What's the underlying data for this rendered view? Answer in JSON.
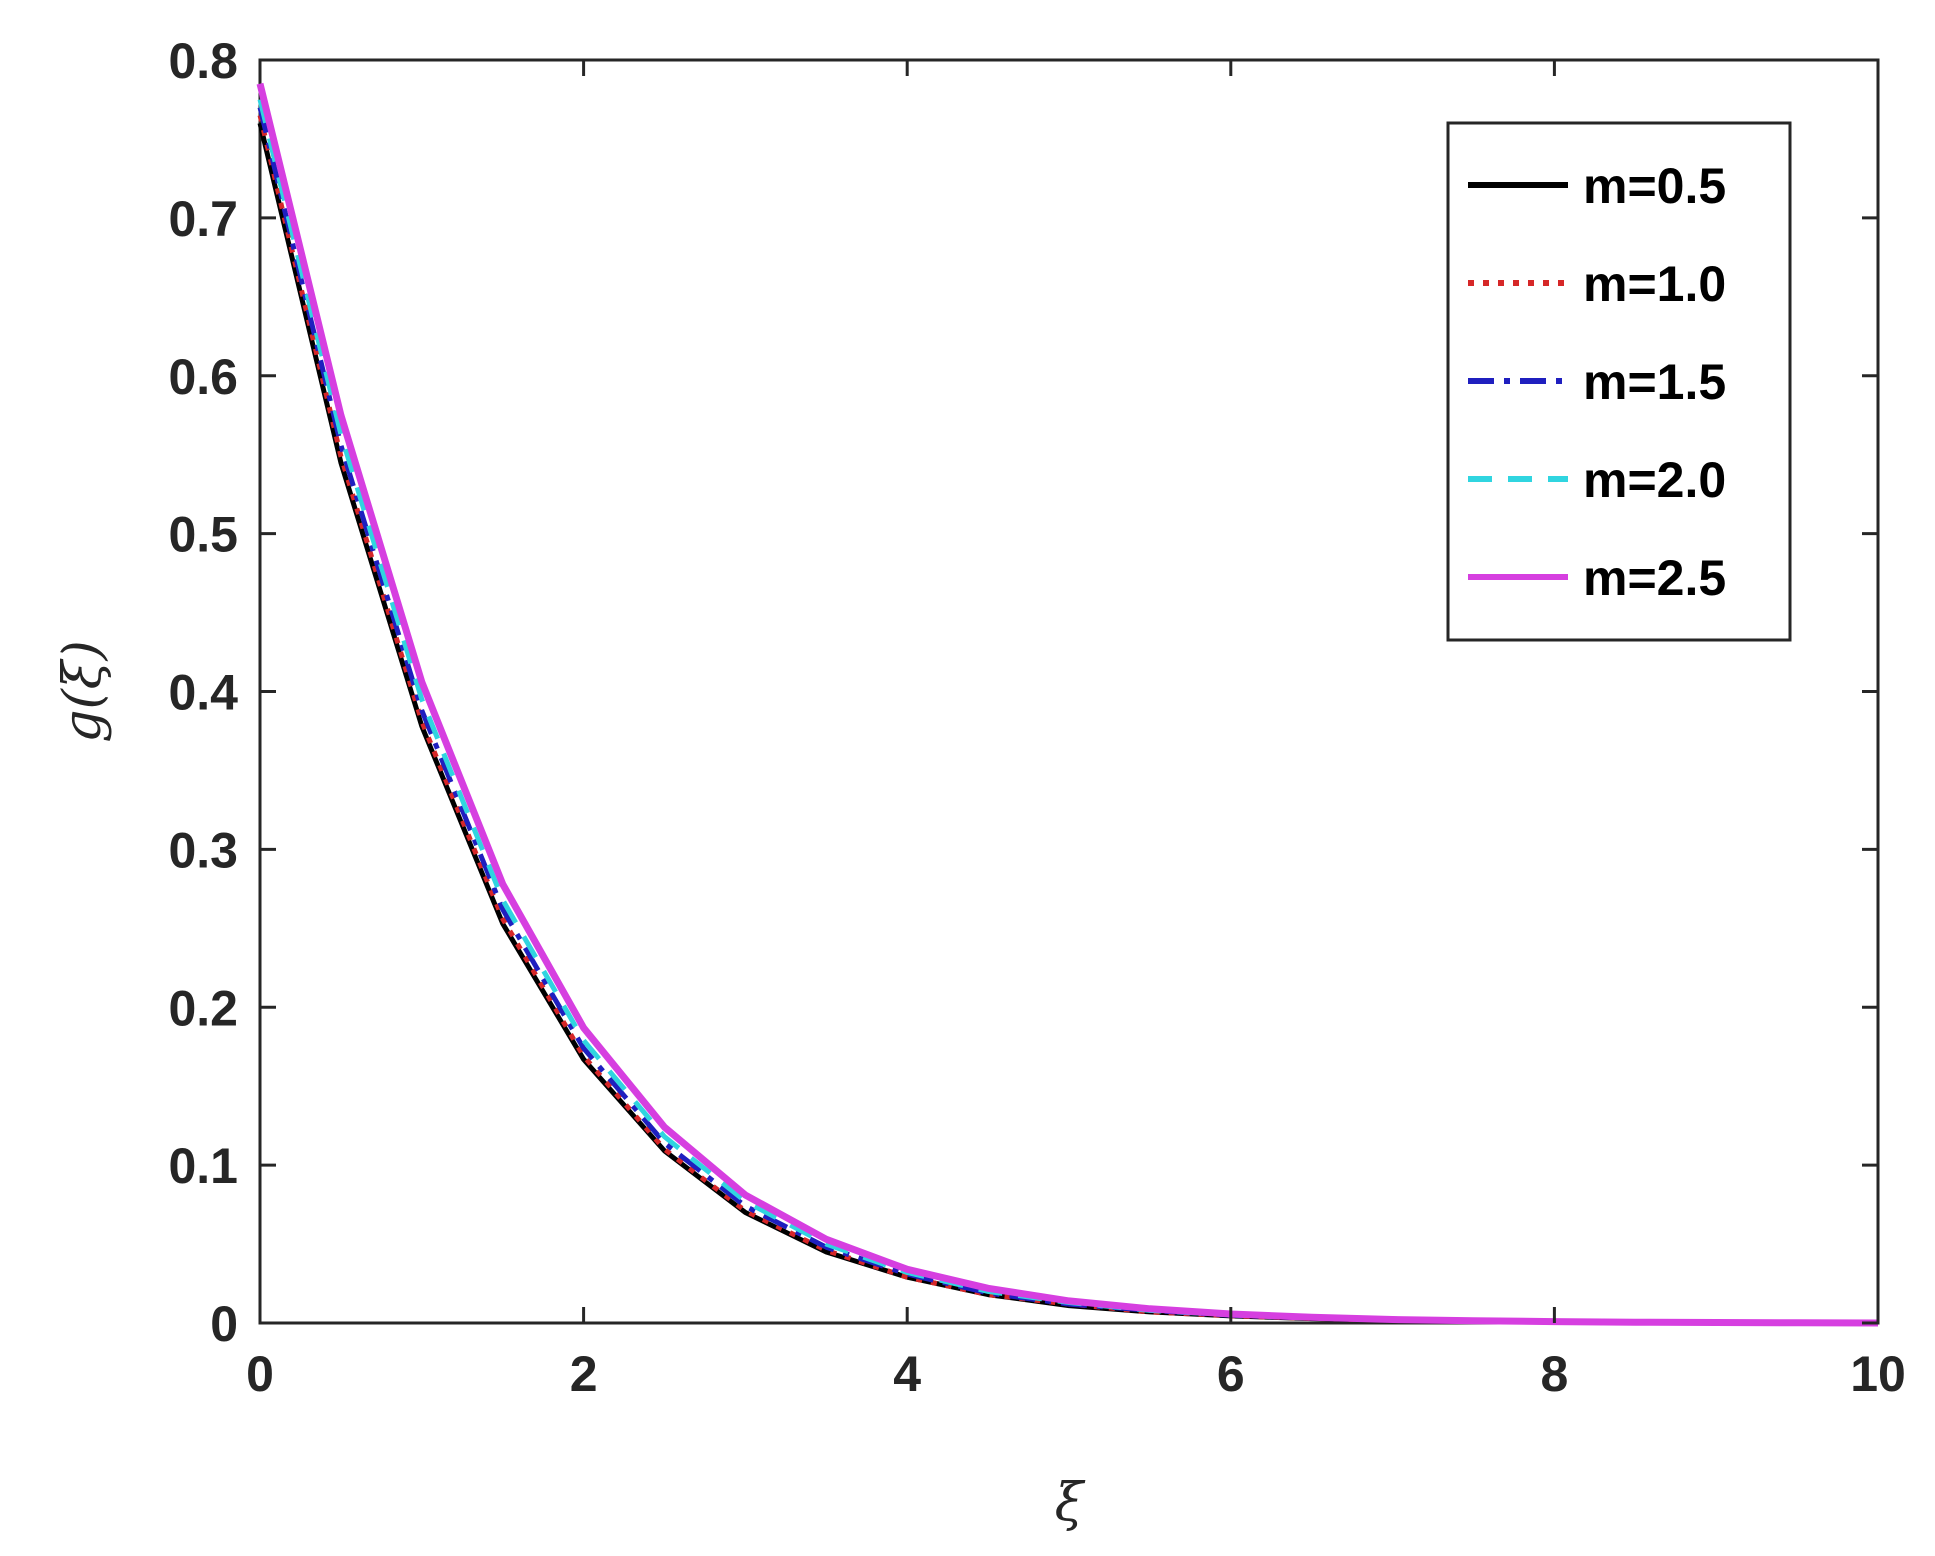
{
  "chart_data": {
    "type": "line",
    "xlabel": "ξ",
    "ylabel": "g(ξ)",
    "xlim": [
      0,
      10
    ],
    "ylim": [
      0,
      0.8
    ],
    "x_ticks": [
      "0",
      "2",
      "4",
      "6",
      "8",
      "10"
    ],
    "y_ticks": [
      "0",
      "0.1",
      "0.2",
      "0.3",
      "0.4",
      "0.5",
      "0.6",
      "0.7",
      "0.8"
    ],
    "grid": false,
    "legend_position": "top-right",
    "x": [
      0,
      0.5,
      1,
      1.5,
      2,
      2.5,
      3,
      3.5,
      4,
      4.5,
      5,
      5.5,
      6,
      6.5,
      7,
      7.5,
      8,
      8.5,
      9,
      9.5,
      10
    ],
    "series": [
      {
        "name": "m=0.5",
        "color": "#000000",
        "style": "solid",
        "values": [
          0.76,
          0.545,
          0.378,
          0.253,
          0.167,
          0.109,
          0.07,
          0.045,
          0.029,
          0.018,
          0.011,
          0.007,
          0.0045,
          0.0028,
          0.0017,
          0.0011,
          0.0007,
          0.0004,
          0.0002,
          0.0001,
          0.0
        ]
      },
      {
        "name": "m=1.0",
        "color": "#d62728",
        "style": "dotted",
        "values": [
          0.765,
          0.549,
          0.381,
          0.256,
          0.169,
          0.11,
          0.071,
          0.046,
          0.029,
          0.018,
          0.012,
          0.007,
          0.0046,
          0.0029,
          0.0018,
          0.0011,
          0.0007,
          0.0004,
          0.0002,
          0.0001,
          0.0
        ]
      },
      {
        "name": "m=1.5",
        "color": "#1f1fbf",
        "style": "dashdot",
        "values": [
          0.77,
          0.556,
          0.388,
          0.262,
          0.174,
          0.114,
          0.074,
          0.048,
          0.031,
          0.019,
          0.012,
          0.008,
          0.0049,
          0.0031,
          0.0019,
          0.0012,
          0.0007,
          0.0004,
          0.0002,
          0.0001,
          0.0
        ]
      },
      {
        "name": "m=2.0",
        "color": "#30d5e0",
        "style": "dashed",
        "values": [
          0.775,
          0.563,
          0.395,
          0.268,
          0.179,
          0.118,
          0.077,
          0.05,
          0.032,
          0.02,
          0.013,
          0.008,
          0.0052,
          0.0033,
          0.002,
          0.0013,
          0.0008,
          0.0005,
          0.0003,
          0.0001,
          0.0
        ]
      },
      {
        "name": "m=2.5",
        "color": "#d63fe0",
        "style": "solid",
        "values": [
          0.785,
          0.575,
          0.406,
          0.278,
          0.187,
          0.124,
          0.081,
          0.053,
          0.034,
          0.022,
          0.014,
          0.009,
          0.0057,
          0.0036,
          0.0022,
          0.0014,
          0.0009,
          0.0005,
          0.0003,
          0.0001,
          0.0
        ]
      }
    ]
  }
}
